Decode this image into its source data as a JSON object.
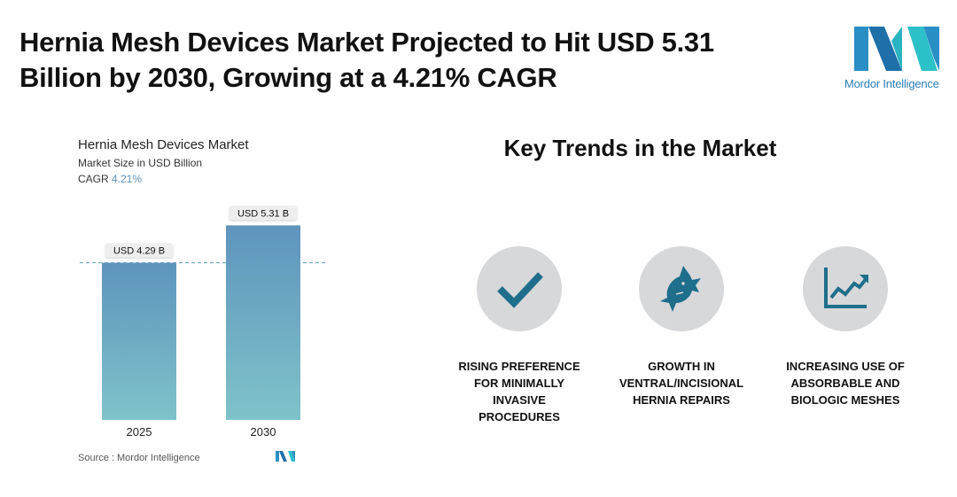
{
  "headline": {
    "line1": "Hernia Mesh Devices Market Projected to Hit USD 5.31",
    "line2": "Billion by 2030, Growing at a 4.21% CAGR"
  },
  "brand": {
    "name": "Mordor Intelligence"
  },
  "colors": {
    "bar_top": "#5f94bd",
    "bar_bottom": "#7fc3c9",
    "reference_line": "#5aa0a8",
    "cagr_value": "#5b93bc",
    "icon_circle": "#d7d8da",
    "icon": "#1f6e8c"
  },
  "chart_data": {
    "type": "bar",
    "title": "Hernia Mesh Devices Market",
    "subtitle": "Market Size in USD Billion",
    "cagr_label": "CAGR",
    "cagr_value": "4.21%",
    "categories": [
      "2025",
      "2030"
    ],
    "values": [
      4.29,
      5.31
    ],
    "data_labels": [
      "USD 4.29 B",
      "USD 5.31 B"
    ],
    "ylim": [
      0,
      5.9
    ],
    "reference_line_at": 4.29,
    "grid": false,
    "legend": "none"
  },
  "source": {
    "text": "Source :  Mordor Intelligence"
  },
  "trends": {
    "title": "Key Trends in the Market",
    "items": [
      {
        "icon": "checkmark-icon",
        "line1": "RISING PREFERENCE",
        "line2": "FOR MINIMALLY",
        "line3": "INVASIVE",
        "line4": "PROCEDURES"
      },
      {
        "icon": "shark-icon",
        "line1": "GROWTH IN",
        "line2": "VENTRAL/INCISIONAL",
        "line3": "HERNIA REPAIRS",
        "line4": ""
      },
      {
        "icon": "line-chart-icon",
        "line1": "INCREASING USE OF",
        "line2": "ABSORBABLE AND",
        "line3": "BIOLOGIC MESHES",
        "line4": ""
      }
    ]
  }
}
